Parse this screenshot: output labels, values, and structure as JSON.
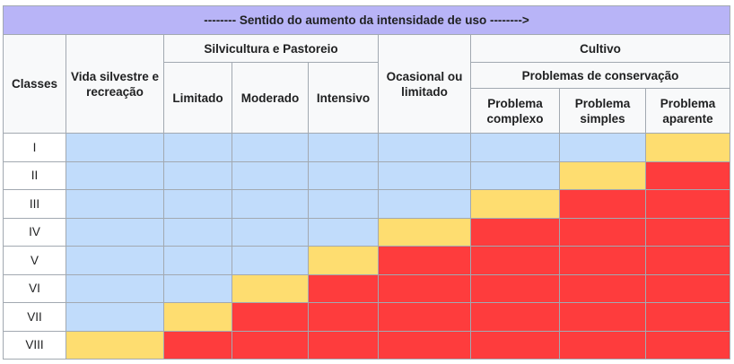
{
  "title": "-------- Sentido do aumento da intensidade de uso -------->",
  "headers": {
    "classes": "Classes",
    "wildlife": "Vida silvestre e recreação",
    "silvo_group": "Silvicultura e Pastoreio",
    "silvo_cols": [
      "Limitado",
      "Moderado",
      "Intensivo"
    ],
    "occasional": "Ocasional ou limitado",
    "cultivo_group": "Cultivo",
    "conservation": "Problemas de conservação",
    "cultivo_cols": [
      "Problema complexo",
      "Problema simples",
      "Problema aparente"
    ]
  },
  "legend_colors": {
    "suitable": "#c1dcfb",
    "limit": "#fedd70",
    "unsuitable": "#fe3c3d"
  },
  "rows": [
    {
      "label": "I",
      "cells": [
        "suitable",
        "suitable",
        "suitable",
        "suitable",
        "suitable",
        "suitable",
        "suitable",
        "limit"
      ]
    },
    {
      "label": "II",
      "cells": [
        "suitable",
        "suitable",
        "suitable",
        "suitable",
        "suitable",
        "suitable",
        "limit",
        "unsuitable"
      ]
    },
    {
      "label": "III",
      "cells": [
        "suitable",
        "suitable",
        "suitable",
        "suitable",
        "suitable",
        "limit",
        "unsuitable",
        "unsuitable"
      ]
    },
    {
      "label": "IV",
      "cells": [
        "suitable",
        "suitable",
        "suitable",
        "suitable",
        "limit",
        "unsuitable",
        "unsuitable",
        "unsuitable"
      ]
    },
    {
      "label": "V",
      "cells": [
        "suitable",
        "suitable",
        "suitable",
        "limit",
        "unsuitable",
        "unsuitable",
        "unsuitable",
        "unsuitable"
      ]
    },
    {
      "label": "VI",
      "cells": [
        "suitable",
        "suitable",
        "limit",
        "unsuitable",
        "unsuitable",
        "unsuitable",
        "unsuitable",
        "unsuitable"
      ]
    },
    {
      "label": "VII",
      "cells": [
        "suitable",
        "limit",
        "unsuitable",
        "unsuitable",
        "unsuitable",
        "unsuitable",
        "unsuitable",
        "unsuitable"
      ]
    },
    {
      "label": "VIII",
      "cells": [
        "limit",
        "unsuitable",
        "unsuitable",
        "unsuitable",
        "unsuitable",
        "unsuitable",
        "unsuitable",
        "unsuitable"
      ]
    }
  ]
}
